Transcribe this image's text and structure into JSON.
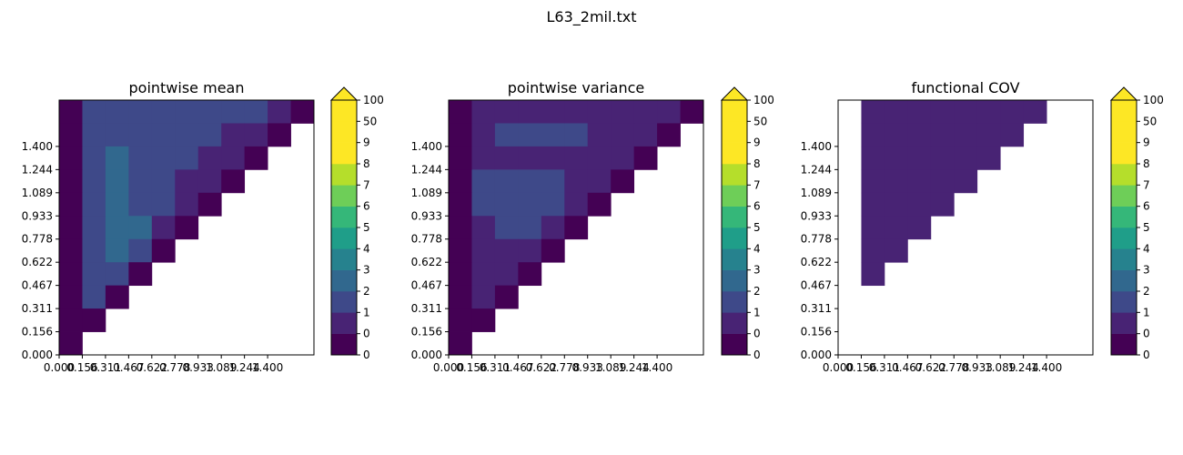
{
  "figure": {
    "suptitle": "L63_2mil.txt"
  },
  "colormap": {
    "colors": [
      "#440154",
      "#482374",
      "#3e4989",
      "#31688e",
      "#26828e",
      "#1f9e89",
      "#35b779",
      "#6ece58",
      "#b5de2b",
      "#fde725"
    ],
    "overflow_color": "#fde725"
  },
  "chart_data": [
    {
      "type": "heatmap",
      "title": "pointwise mean",
      "xlabel": "",
      "ylabel": "",
      "x_tick_labels": [
        "0.000",
        "0.156",
        "0.311",
        "0.467",
        "0.622",
        "0.778",
        "0.933",
        "1.089",
        "1.244",
        "1.400"
      ],
      "y_tick_labels": [
        "0.000",
        "0.156",
        "0.311",
        "0.467",
        "0.622",
        "0.778",
        "0.933",
        "1.089",
        "1.244",
        "1.400"
      ],
      "colorbar": {
        "levels": [
          "0",
          "0",
          "1",
          "2",
          "3",
          "4",
          "5",
          "6",
          "7",
          "8",
          "9",
          "50",
          "100"
        ],
        "extend": "max"
      },
      "grid_note": "rows listed top (y=1.478 row) to bottom (y=0.000 row); null = empty",
      "level_index_grid": [
        [
          0,
          2,
          2,
          2,
          2,
          2,
          2,
          2,
          2,
          1,
          0
        ],
        [
          0,
          2,
          2,
          2,
          2,
          2,
          2,
          1,
          1,
          0,
          null
        ],
        [
          0,
          2,
          3,
          2,
          2,
          2,
          1,
          1,
          0,
          null,
          null
        ],
        [
          0,
          2,
          3,
          2,
          2,
          1,
          1,
          0,
          null,
          null,
          null
        ],
        [
          0,
          2,
          3,
          2,
          2,
          1,
          0,
          null,
          null,
          null,
          null
        ],
        [
          0,
          2,
          3,
          3,
          1,
          0,
          null,
          null,
          null,
          null,
          null
        ],
        [
          0,
          2,
          3,
          2,
          0,
          null,
          null,
          null,
          null,
          null,
          null
        ],
        [
          0,
          2,
          2,
          0,
          null,
          null,
          null,
          null,
          null,
          null,
          null
        ],
        [
          0,
          2,
          0,
          null,
          null,
          null,
          null,
          null,
          null,
          null,
          null
        ],
        [
          0,
          0,
          null,
          null,
          null,
          null,
          null,
          null,
          null,
          null,
          null
        ],
        [
          0,
          null,
          null,
          null,
          null,
          null,
          null,
          null,
          null,
          null,
          null
        ]
      ]
    },
    {
      "type": "heatmap",
      "title": "pointwise variance",
      "xlabel": "",
      "ylabel": "",
      "x_tick_labels": [
        "0.000",
        "0.156",
        "0.311",
        "0.467",
        "0.622",
        "0.778",
        "0.933",
        "1.089",
        "1.244",
        "1.400"
      ],
      "y_tick_labels": [
        "0.000",
        "0.156",
        "0.311",
        "0.467",
        "0.622",
        "0.778",
        "0.933",
        "1.089",
        "1.244",
        "1.400"
      ],
      "colorbar": {
        "levels": [
          "0",
          "0",
          "1",
          "2",
          "3",
          "4",
          "5",
          "6",
          "7",
          "8",
          "9",
          "50",
          "100"
        ],
        "extend": "max"
      },
      "grid_note": "rows listed top (y=1.478 row) to bottom (y=0.000 row); null = empty",
      "level_index_grid": [
        [
          0,
          1,
          1,
          1,
          1,
          1,
          1,
          1,
          1,
          1,
          0
        ],
        [
          0,
          1,
          2,
          2,
          2,
          2,
          1,
          1,
          1,
          0,
          null
        ],
        [
          0,
          1,
          1,
          1,
          1,
          1,
          1,
          1,
          0,
          null,
          null
        ],
        [
          0,
          2,
          2,
          2,
          2,
          1,
          1,
          0,
          null,
          null,
          null
        ],
        [
          0,
          2,
          2,
          2,
          2,
          1,
          0,
          null,
          null,
          null,
          null
        ],
        [
          0,
          1,
          2,
          2,
          1,
          0,
          null,
          null,
          null,
          null,
          null
        ],
        [
          0,
          1,
          1,
          1,
          0,
          null,
          null,
          null,
          null,
          null,
          null
        ],
        [
          0,
          1,
          1,
          0,
          null,
          null,
          null,
          null,
          null,
          null,
          null
        ],
        [
          0,
          1,
          0,
          null,
          null,
          null,
          null,
          null,
          null,
          null,
          null
        ],
        [
          0,
          0,
          null,
          null,
          null,
          null,
          null,
          null,
          null,
          null,
          null
        ],
        [
          0,
          null,
          null,
          null,
          null,
          null,
          null,
          null,
          null,
          null,
          null
        ]
      ]
    },
    {
      "type": "heatmap",
      "title": "functional COV",
      "xlabel": "",
      "ylabel": "",
      "x_tick_labels": [
        "0.000",
        "0.156",
        "0.311",
        "0.467",
        "0.622",
        "0.778",
        "0.933",
        "1.089",
        "1.244",
        "1.400"
      ],
      "y_tick_labels": [
        "0.000",
        "0.156",
        "0.311",
        "0.467",
        "0.622",
        "0.778",
        "0.933",
        "1.089",
        "1.244",
        "1.400"
      ],
      "colorbar": {
        "levels": [
          "0",
          "0",
          "1",
          "2",
          "3",
          "4",
          "5",
          "6",
          "7",
          "8",
          "9",
          "50",
          "100"
        ],
        "extend": "max"
      },
      "grid_note": "rows listed top (y=1.478 row) to bottom (y=0.000 row); null = empty",
      "level_index_grid": [
        [
          null,
          1,
          1,
          1,
          1,
          1,
          1,
          1,
          1,
          null,
          null
        ],
        [
          null,
          1,
          1,
          1,
          1,
          1,
          1,
          1,
          null,
          null,
          null
        ],
        [
          null,
          1,
          1,
          1,
          1,
          1,
          1,
          null,
          null,
          null,
          null
        ],
        [
          null,
          1,
          1,
          1,
          1,
          1,
          null,
          null,
          null,
          null,
          null
        ],
        [
          null,
          1,
          1,
          1,
          1,
          null,
          null,
          null,
          null,
          null,
          null
        ],
        [
          null,
          1,
          1,
          1,
          null,
          null,
          null,
          null,
          null,
          null,
          null
        ],
        [
          null,
          1,
          1,
          null,
          null,
          null,
          null,
          null,
          null,
          null,
          null
        ],
        [
          null,
          1,
          null,
          null,
          null,
          null,
          null,
          null,
          null,
          null,
          null
        ],
        [
          null,
          null,
          null,
          null,
          null,
          null,
          null,
          null,
          null,
          null,
          null
        ],
        [
          null,
          null,
          null,
          null,
          null,
          null,
          null,
          null,
          null,
          null,
          null
        ],
        [
          null,
          null,
          null,
          null,
          null,
          null,
          null,
          null,
          null,
          null,
          null
        ]
      ]
    }
  ]
}
